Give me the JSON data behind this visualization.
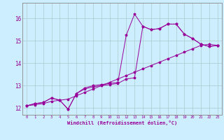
{
  "xlabel": "Windchill (Refroidissement éolien,°C)",
  "bg_color": "#cceeff",
  "line_color": "#990099",
  "grid_color": "#aacccc",
  "xlim": [
    -0.5,
    23.5
  ],
  "ylim": [
    11.7,
    16.7
  ],
  "xticks": [
    0,
    1,
    2,
    3,
    4,
    5,
    6,
    7,
    8,
    9,
    10,
    11,
    12,
    13,
    14,
    15,
    16,
    17,
    18,
    19,
    20,
    21,
    22,
    23
  ],
  "yticks": [
    12,
    13,
    14,
    15,
    16
  ],
  "line1_x": [
    0,
    1,
    2,
    3,
    4,
    5,
    6,
    7,
    8,
    9,
    10,
    11,
    12,
    13,
    14,
    15,
    16,
    17,
    18,
    19,
    20,
    21,
    22,
    23
  ],
  "line1_y": [
    12.1,
    12.2,
    12.25,
    12.45,
    12.35,
    11.95,
    12.65,
    12.9,
    13.0,
    13.05,
    13.1,
    13.15,
    15.25,
    16.2,
    15.65,
    15.5,
    15.55,
    15.75,
    15.75,
    15.3,
    15.1,
    14.85,
    14.75,
    14.8
  ],
  "line2_x": [
    0,
    1,
    2,
    3,
    4,
    5,
    6,
    7,
    8,
    9,
    10,
    11,
    12,
    13,
    14,
    15,
    16,
    17,
    18,
    19,
    20,
    21,
    22,
    23
  ],
  "line2_y": [
    12.1,
    12.2,
    12.25,
    12.45,
    12.35,
    11.95,
    12.65,
    12.85,
    12.95,
    13.0,
    13.05,
    13.1,
    13.3,
    13.35,
    15.65,
    15.5,
    15.55,
    15.75,
    15.75,
    15.3,
    15.1,
    14.85,
    14.75,
    14.8
  ],
  "line3_x": [
    0,
    1,
    2,
    3,
    4,
    5,
    6,
    7,
    8,
    9,
    10,
    11,
    12,
    13,
    14,
    15,
    16,
    17,
    18,
    19,
    20,
    21,
    22,
    23
  ],
  "line3_y": [
    12.1,
    12.15,
    12.2,
    12.3,
    12.35,
    12.4,
    12.55,
    12.7,
    12.85,
    13.0,
    13.15,
    13.3,
    13.45,
    13.6,
    13.75,
    13.9,
    14.05,
    14.2,
    14.35,
    14.5,
    14.65,
    14.8,
    14.85,
    14.8
  ]
}
